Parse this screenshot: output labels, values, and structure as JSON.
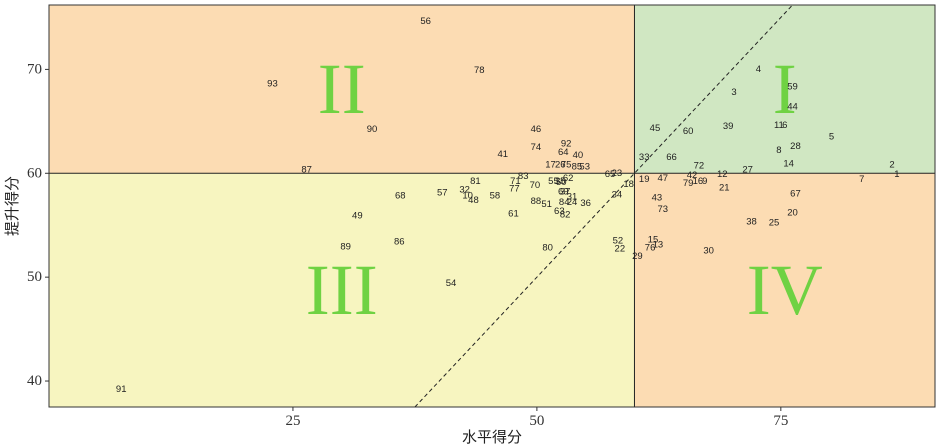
{
  "chart_data": {
    "type": "scatter",
    "xlabel": "水平得分",
    "ylabel": "提升得分",
    "xlim": [
      0,
      90.8
    ],
    "ylim": [
      37.5,
      76.2
    ],
    "x_ticks": [
      "25",
      "50",
      "75"
    ],
    "x_tick_values": [
      25,
      50,
      75
    ],
    "y_ticks": [
      "40",
      "50",
      "60",
      "70"
    ],
    "y_tick_values": [
      40,
      50,
      60,
      70
    ],
    "grid": false,
    "reference_lines": {
      "vertical_x": 60,
      "horizontal_y": 60,
      "diagonal": "y = x (dashed)"
    },
    "quadrants": [
      {
        "label": "I",
        "region": "upper-right",
        "color": "#d0e7c2"
      },
      {
        "label": "II",
        "region": "upper-left",
        "color": "#fcdcb3"
      },
      {
        "label": "III",
        "region": "lower-left",
        "color": "#f7f5c0"
      },
      {
        "label": "IV",
        "region": "lower-right",
        "color": "#fcdcb3"
      }
    ],
    "quadrant_label_color": "#6fd243",
    "points": [
      {
        "label": "1",
        "x": 86.9,
        "y": 59.9
      },
      {
        "label": "2",
        "x": 86.4,
        "y": 60.8
      },
      {
        "label": "3",
        "x": 70.2,
        "y": 67.8
      },
      {
        "label": "4",
        "x": 72.7,
        "y": 70.0
      },
      {
        "label": "5",
        "x": 80.2,
        "y": 63.5
      },
      {
        "label": "6",
        "x": 75.4,
        "y": 64.6
      },
      {
        "label": "7",
        "x": 83.3,
        "y": 59.4
      },
      {
        "label": "8",
        "x": 74.8,
        "y": 62.2
      },
      {
        "label": "9",
        "x": 67.2,
        "y": 59.2
      },
      {
        "label": "10",
        "x": 42.9,
        "y": 57.8
      },
      {
        "label": "11",
        "x": 74.8,
        "y": 64.6
      },
      {
        "label": "12",
        "x": 69.0,
        "y": 59.9
      },
      {
        "label": "13",
        "x": 62.4,
        "y": 53.1
      },
      {
        "label": "14",
        "x": 75.8,
        "y": 60.9
      },
      {
        "label": "15",
        "x": 61.9,
        "y": 53.6
      },
      {
        "label": "16",
        "x": 66.5,
        "y": 59.2
      },
      {
        "label": "17",
        "x": 51.4,
        "y": 60.8
      },
      {
        "label": "18",
        "x": 59.4,
        "y": 58.9
      },
      {
        "label": "19",
        "x": 61.0,
        "y": 59.4
      },
      {
        "label": "20",
        "x": 76.2,
        "y": 56.2
      },
      {
        "label": "21",
        "x": 69.2,
        "y": 58.6
      },
      {
        "label": "22",
        "x": 58.5,
        "y": 52.7
      },
      {
        "label": "23",
        "x": 58.2,
        "y": 60.0
      },
      {
        "label": "24",
        "x": 53.6,
        "y": 57.2
      },
      {
        "label": "25",
        "x": 74.3,
        "y": 55.2
      },
      {
        "label": "26",
        "x": 52.4,
        "y": 60.8
      },
      {
        "label": "27",
        "x": 71.6,
        "y": 60.3
      },
      {
        "label": "28",
        "x": 76.5,
        "y": 62.6
      },
      {
        "label": "29",
        "x": 60.3,
        "y": 52.0
      },
      {
        "label": "30",
        "x": 67.6,
        "y": 52.5
      },
      {
        "label": "31",
        "x": 53.6,
        "y": 57.7
      },
      {
        "label": "32",
        "x": 42.6,
        "y": 58.4
      },
      {
        "label": "33",
        "x": 61.0,
        "y": 61.5
      },
      {
        "label": "34",
        "x": 58.2,
        "y": 57.9
      },
      {
        "label": "35",
        "x": 52.4,
        "y": 59.2
      },
      {
        "label": "36",
        "x": 55.0,
        "y": 57.1
      },
      {
        "label": "37",
        "x": 52.9,
        "y": 58.2
      },
      {
        "label": "38",
        "x": 72.0,
        "y": 55.3
      },
      {
        "label": "39",
        "x": 69.6,
        "y": 64.5
      },
      {
        "label": "40",
        "x": 54.2,
        "y": 61.7
      },
      {
        "label": "41",
        "x": 46.5,
        "y": 61.8
      },
      {
        "label": "42",
        "x": 65.9,
        "y": 59.8
      },
      {
        "label": "43",
        "x": 62.3,
        "y": 57.6
      },
      {
        "label": "44",
        "x": 76.2,
        "y": 66.4
      },
      {
        "label": "45",
        "x": 62.1,
        "y": 64.3
      },
      {
        "label": "46",
        "x": 49.9,
        "y": 64.2
      },
      {
        "label": "47",
        "x": 62.9,
        "y": 59.5
      },
      {
        "label": "48",
        "x": 43.5,
        "y": 57.4
      },
      {
        "label": "49",
        "x": 31.6,
        "y": 55.9
      },
      {
        "label": "50",
        "x": 52.5,
        "y": 59.1
      },
      {
        "label": "51",
        "x": 51.0,
        "y": 57.0
      },
      {
        "label": "52",
        "x": 58.3,
        "y": 53.5
      },
      {
        "label": "53",
        "x": 54.9,
        "y": 60.6
      },
      {
        "label": "54",
        "x": 41.2,
        "y": 49.4
      },
      {
        "label": "55",
        "x": 51.7,
        "y": 59.2
      },
      {
        "label": "56",
        "x": 38.6,
        "y": 74.6
      },
      {
        "label": "57",
        "x": 40.3,
        "y": 58.1
      },
      {
        "label": "58",
        "x": 45.7,
        "y": 57.8
      },
      {
        "label": "59",
        "x": 76.2,
        "y": 68.3
      },
      {
        "label": "60",
        "x": 65.5,
        "y": 64.0
      },
      {
        "label": "61",
        "x": 47.6,
        "y": 56.1
      },
      {
        "label": "62",
        "x": 53.2,
        "y": 59.5
      },
      {
        "label": "63",
        "x": 52.3,
        "y": 56.3
      },
      {
        "label": "64",
        "x": 52.7,
        "y": 62.0
      },
      {
        "label": "65",
        "x": 57.5,
        "y": 59.9
      },
      {
        "label": "66",
        "x": 63.8,
        "y": 61.5
      },
      {
        "label": "67",
        "x": 76.5,
        "y": 58.0
      },
      {
        "label": "68",
        "x": 36.0,
        "y": 57.8
      },
      {
        "label": "69",
        "x": 52.7,
        "y": 58.2
      },
      {
        "label": "70",
        "x": 49.8,
        "y": 58.8
      },
      {
        "label": "71",
        "x": 47.8,
        "y": 59.2
      },
      {
        "label": "72",
        "x": 66.6,
        "y": 60.7
      },
      {
        "label": "73",
        "x": 62.9,
        "y": 56.5
      },
      {
        "label": "74",
        "x": 49.9,
        "y": 62.5
      },
      {
        "label": "75",
        "x": 53.0,
        "y": 60.8
      },
      {
        "label": "76",
        "x": 61.6,
        "y": 52.8
      },
      {
        "label": "77",
        "x": 47.7,
        "y": 58.5
      },
      {
        "label": "78",
        "x": 44.1,
        "y": 69.9
      },
      {
        "label": "79",
        "x": 65.5,
        "y": 59.0
      },
      {
        "label": "80",
        "x": 51.1,
        "y": 52.8
      },
      {
        "label": "81",
        "x": 43.7,
        "y": 59.2
      },
      {
        "label": "82",
        "x": 52.9,
        "y": 56.0
      },
      {
        "label": "83",
        "x": 48.6,
        "y": 59.7
      },
      {
        "label": "84",
        "x": 52.8,
        "y": 57.2
      },
      {
        "label": "85",
        "x": 54.1,
        "y": 60.6
      },
      {
        "label": "86",
        "x": 35.9,
        "y": 53.4
      },
      {
        "label": "87",
        "x": 26.4,
        "y": 60.3
      },
      {
        "label": "88",
        "x": 49.9,
        "y": 57.3
      },
      {
        "label": "89",
        "x": 30.4,
        "y": 52.9
      },
      {
        "label": "90",
        "x": 33.1,
        "y": 64.2
      },
      {
        "label": "91",
        "x": 7.4,
        "y": 39.2
      },
      {
        "label": "92",
        "x": 53.0,
        "y": 62.8
      },
      {
        "label": "93",
        "x": 22.9,
        "y": 68.6
      }
    ]
  }
}
